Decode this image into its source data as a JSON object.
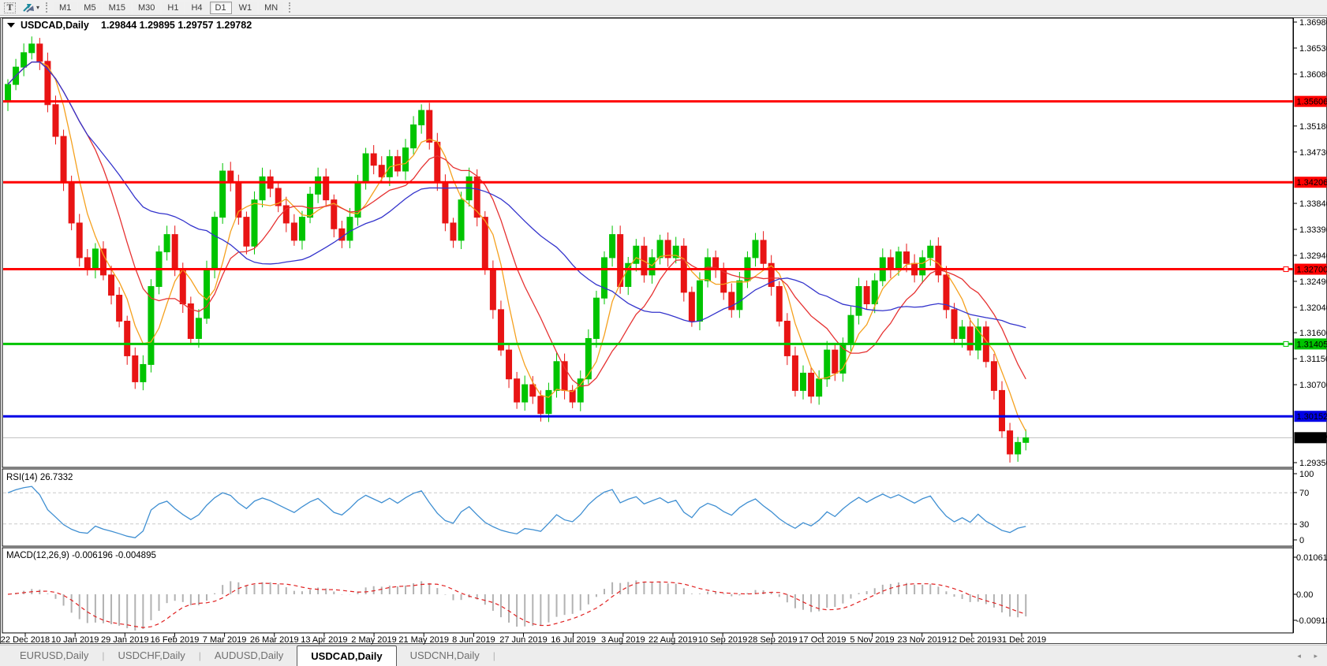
{
  "toolbar": {
    "text_tool_label": "T",
    "arrows_tool": "chart-shift-tool",
    "dropdown_caret": "▾",
    "timeframes": [
      "M1",
      "M5",
      "M15",
      "M30",
      "H1",
      "H4",
      "D1",
      "W1",
      "MN"
    ],
    "active_timeframe": "D1"
  },
  "chart_data": {
    "type": "candlestick",
    "symbol": "USDCAD",
    "timeframe": "Daily",
    "title": "USDCAD,Daily",
    "ohlc_display": "1.29844 1.29895 1.29757 1.29782",
    "ohlc": {
      "open": 1.29844,
      "high": 1.29895,
      "low": 1.29757,
      "close": 1.29782
    },
    "price_axis_ticks": [
      "1.36980",
      "1.36530",
      "1.36080",
      "1.35180",
      "1.34730",
      "1.33840",
      "1.33390",
      "1.32940",
      "1.32490",
      "1.32040",
      "1.31600",
      "1.31150",
      "1.30700",
      "1.29350"
    ],
    "y_range": {
      "top": 1.3698,
      "bottom": 1.2935
    },
    "hlines": [
      {
        "value": 1.35606,
        "label": "1.35606",
        "color": "#ff0000",
        "marker": false
      },
      {
        "value": 1.34206,
        "label": "1.34206",
        "color": "#ff0000",
        "marker": false
      },
      {
        "value": 1.327,
        "label": "1.32700",
        "color": "#ff0000",
        "marker": true
      },
      {
        "value": 1.31405,
        "label": "1.31405",
        "color": "#00c400",
        "marker": true
      },
      {
        "value": 1.30152,
        "label": "1.30152",
        "color": "#0000e6",
        "marker": false
      }
    ],
    "current_price": {
      "value": 1.29782,
      "label": "1.29782",
      "line_color": "#c0c0c0",
      "box_color": "#000000"
    },
    "dates": [
      "22 Dec 2018",
      "10 Jan 2019",
      "29 Jan 2019",
      "16 Feb 2019",
      "7 Mar 2019",
      "26 Mar 2019",
      "13 Apr 2019",
      "2 May 2019",
      "21 May 2019",
      "8 Jun 2019",
      "27 Jun 2019",
      "16 Jul 2019",
      "3 Aug 2019",
      "22 Aug 2019",
      "10 Sep 2019",
      "28 Sep 2019",
      "17 Oct 2019",
      "5 Nov 2019",
      "23 Nov 2019",
      "12 Dec 2019",
      "31 Dec 2019"
    ],
    "candle_up_color": "#00c400",
    "candle_down_color": "#e81414",
    "first_open": 1.356,
    "closes": [
      1.359,
      1.362,
      1.3645,
      1.366,
      1.363,
      1.3555,
      1.35,
      1.342,
      1.335,
      1.329,
      1.327,
      1.3305,
      1.326,
      1.3225,
      1.318,
      1.312,
      1.3075,
      1.3105,
      1.324,
      1.33,
      1.333,
      1.327,
      1.321,
      1.315,
      1.3185,
      1.327,
      1.336,
      1.344,
      1.342,
      1.336,
      1.331,
      1.339,
      1.343,
      1.341,
      1.338,
      1.335,
      1.332,
      1.336,
      1.34,
      1.343,
      1.339,
      1.334,
      1.332,
      1.336,
      1.342,
      1.347,
      1.345,
      1.343,
      1.3465,
      1.344,
      1.348,
      1.352,
      1.3545,
      1.349,
      1.342,
      1.335,
      1.332,
      1.339,
      1.343,
      1.336,
      1.327,
      1.32,
      1.313,
      1.308,
      1.304,
      1.307,
      1.305,
      1.302,
      1.306,
      1.311,
      1.306,
      1.304,
      1.308,
      1.315,
      1.322,
      1.329,
      1.333,
      1.324,
      1.328,
      1.331,
      1.326,
      1.329,
      1.332,
      1.329,
      1.331,
      1.323,
      1.318,
      1.325,
      1.329,
      1.327,
      1.323,
      1.32,
      1.325,
      1.329,
      1.332,
      1.328,
      1.324,
      1.318,
      1.312,
      1.306,
      1.309,
      1.305,
      1.308,
      1.313,
      1.309,
      1.314,
      1.319,
      1.324,
      1.321,
      1.325,
      1.329,
      1.327,
      1.33,
      1.328,
      1.326,
      1.329,
      1.331,
      1.326,
      1.32,
      1.315,
      1.317,
      1.313,
      1.317,
      1.311,
      1.306,
      1.299,
      1.295,
      1.297,
      1.2978
    ],
    "moving_averages": [
      {
        "name": "fast",
        "window": 5,
        "color": "#f5a11e"
      },
      {
        "name": "mid",
        "window": 11,
        "color": "#e63232"
      },
      {
        "name": "slow",
        "window": 26,
        "color": "#3434cc"
      }
    ],
    "rsi": {
      "label": "RSI(14) 26.7332",
      "last_value": 26.7332,
      "color": "#3f8fd2",
      "levels": {
        "upper": 70,
        "lower": 30
      },
      "axis_labels": [
        "100",
        "70",
        "30",
        "0"
      ],
      "render_period": 7
    },
    "macd": {
      "label": "MACD(12,26,9) -0.006196 -0.004895",
      "values": [
        -0.006196,
        -0.004895
      ],
      "hist_color": "#b2b2b2",
      "signal_color": "#e02020",
      "axis_labels": [
        "0.010615",
        "0.00",
        "-0.009181"
      ],
      "render_fast": 6,
      "render_slow": 13,
      "render_signal": 5
    }
  },
  "tabs": {
    "items": [
      "EURUSD,Daily",
      "USDCHF,Daily",
      "AUDUSD,Daily",
      "USDCAD,Daily",
      "USDCNH,Daily"
    ],
    "active": "USDCAD,Daily",
    "scroll_left": "◂",
    "scroll_right": "▸"
  }
}
